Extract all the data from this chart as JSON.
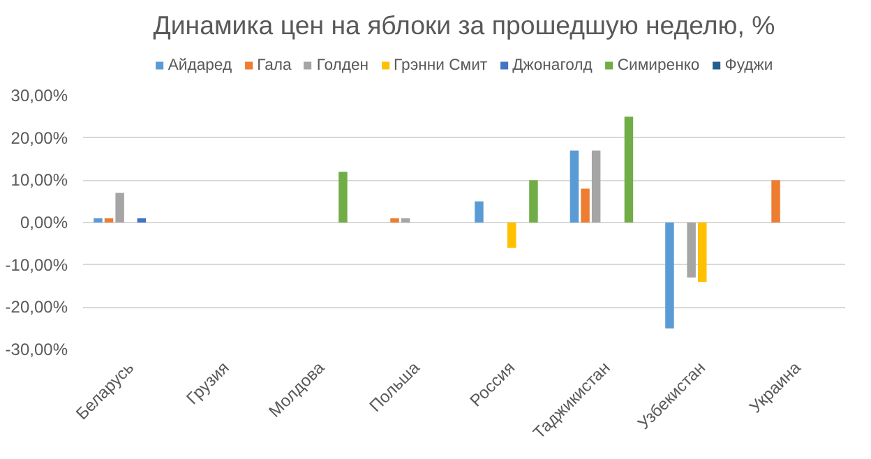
{
  "chart_data": {
    "type": "bar",
    "title": "Динамика цен на яблоки за прошедшую неделю, %",
    "categories": [
      "Беларусь",
      "Грузия",
      "Молдова",
      "Польша",
      "Россия",
      "Таджикистан",
      "Узбекистан",
      "Украина"
    ],
    "series": [
      {
        "name": "Айдаред",
        "color": "#5b9bd5",
        "values": [
          1,
          null,
          null,
          null,
          5,
          17,
          -25,
          null
        ]
      },
      {
        "name": "Гала",
        "color": "#ed7d31",
        "values": [
          1,
          null,
          null,
          1,
          null,
          8,
          null,
          10
        ]
      },
      {
        "name": "Голден",
        "color": "#a5a5a5",
        "values": [
          7,
          null,
          null,
          1,
          null,
          17,
          -13,
          null
        ]
      },
      {
        "name": "Грэнни Смит",
        "color": "#ffc000",
        "values": [
          null,
          null,
          null,
          null,
          -6,
          null,
          -14,
          null
        ]
      },
      {
        "name": "Джонаголд",
        "color": "#4472c4",
        "values": [
          1,
          null,
          null,
          null,
          null,
          null,
          null,
          null
        ]
      },
      {
        "name": "Симиренко",
        "color": "#70ad47",
        "values": [
          null,
          null,
          12,
          null,
          10,
          25,
          null,
          null
        ]
      },
      {
        "name": "Фуджи",
        "color": "#255e91",
        "values": [
          null,
          null,
          null,
          null,
          null,
          null,
          null,
          null
        ]
      }
    ],
    "ylim": [
      -30,
      30
    ],
    "yticks": [
      {
        "value": -30,
        "label": "-30,00%"
      },
      {
        "value": -20,
        "label": "-20,00%"
      },
      {
        "value": -10,
        "label": "-10,00%"
      },
      {
        "value": 0,
        "label": "0,00%"
      },
      {
        "value": 10,
        "label": "10,00%"
      },
      {
        "value": 20,
        "label": "20,00%"
      },
      {
        "value": 30,
        "label": "30,00%"
      }
    ],
    "grid": "y",
    "legend": "top"
  }
}
